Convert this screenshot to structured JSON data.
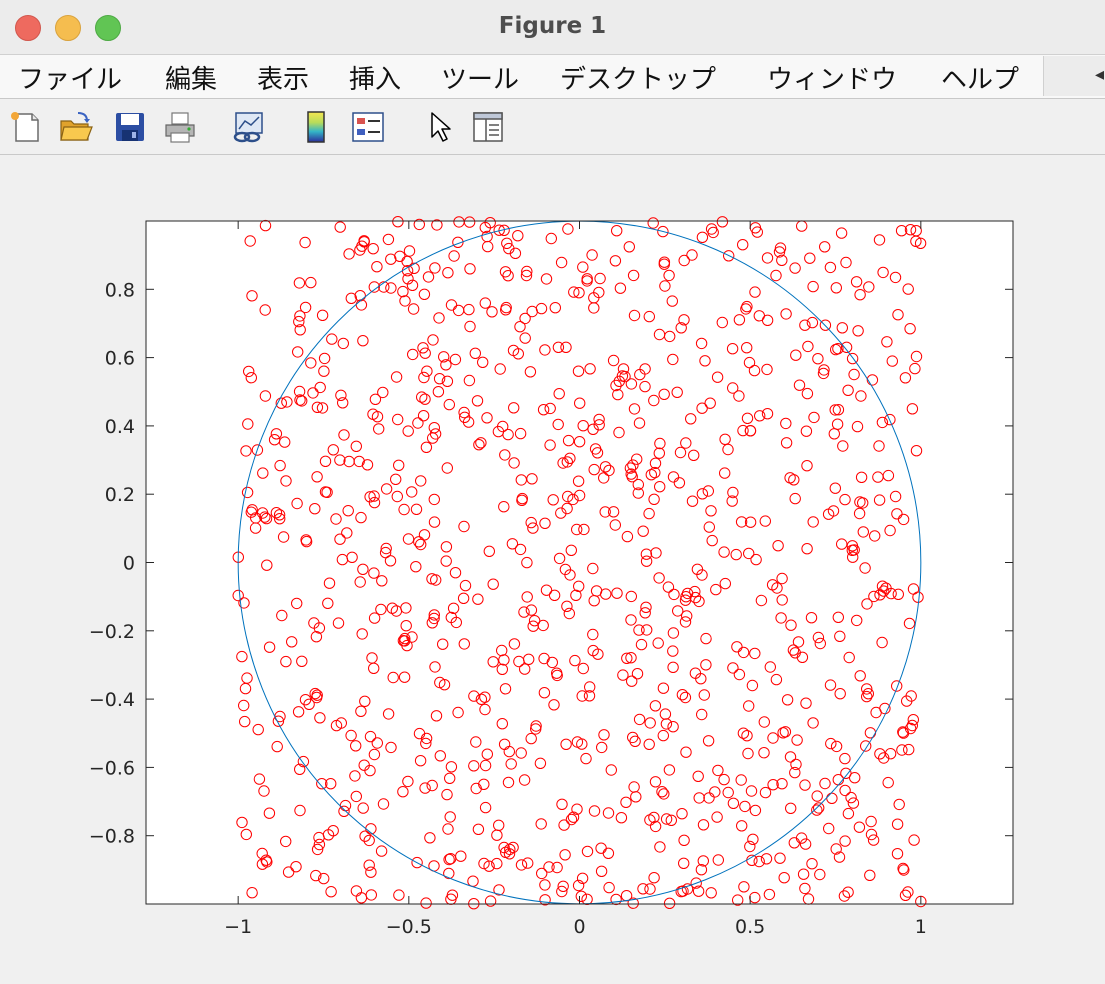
{
  "window": {
    "title": "Figure 1"
  },
  "menu": [
    "ファイル",
    "編集",
    "表示",
    "挿入",
    "ツール",
    "デスクトップ",
    "ウィンドウ",
    "ヘルプ"
  ],
  "toolbar_icons": [
    "new-figure-icon",
    "open-file-icon",
    "save-icon",
    "print-icon",
    "link-plot-icon",
    "insert-colorbar-icon",
    "insert-legend-icon",
    "pointer-icon",
    "property-inspector-icon"
  ],
  "colors": {
    "points": "#ff0000",
    "circle": "#0072bd"
  },
  "chart_data": {
    "type": "scatter",
    "title": "",
    "xlabel": "",
    "ylabel": "",
    "xlim": [
      -1.27,
      1.27
    ],
    "ylim": [
      -1,
      1
    ],
    "xticks": [
      -1,
      -0.5,
      0,
      0.5,
      1
    ],
    "xtick_labels": [
      "−1",
      "−0.5",
      "0",
      "0.5",
      "1"
    ],
    "yticks": [
      -0.8,
      -0.6,
      -0.4,
      -0.2,
      0,
      0.2,
      0.4,
      0.6,
      0.8
    ],
    "ytick_labels": [
      "−0.8",
      "−0.6",
      "−0.4",
      "−0.2",
      "0",
      "0.2",
      "0.4",
      "0.6",
      "0.8"
    ],
    "grid": false,
    "marker": "circle-open",
    "point_count": 1000,
    "seed": 12345,
    "overlay": {
      "type": "circle",
      "cx": 0,
      "cy": 0,
      "r": 1
    }
  }
}
